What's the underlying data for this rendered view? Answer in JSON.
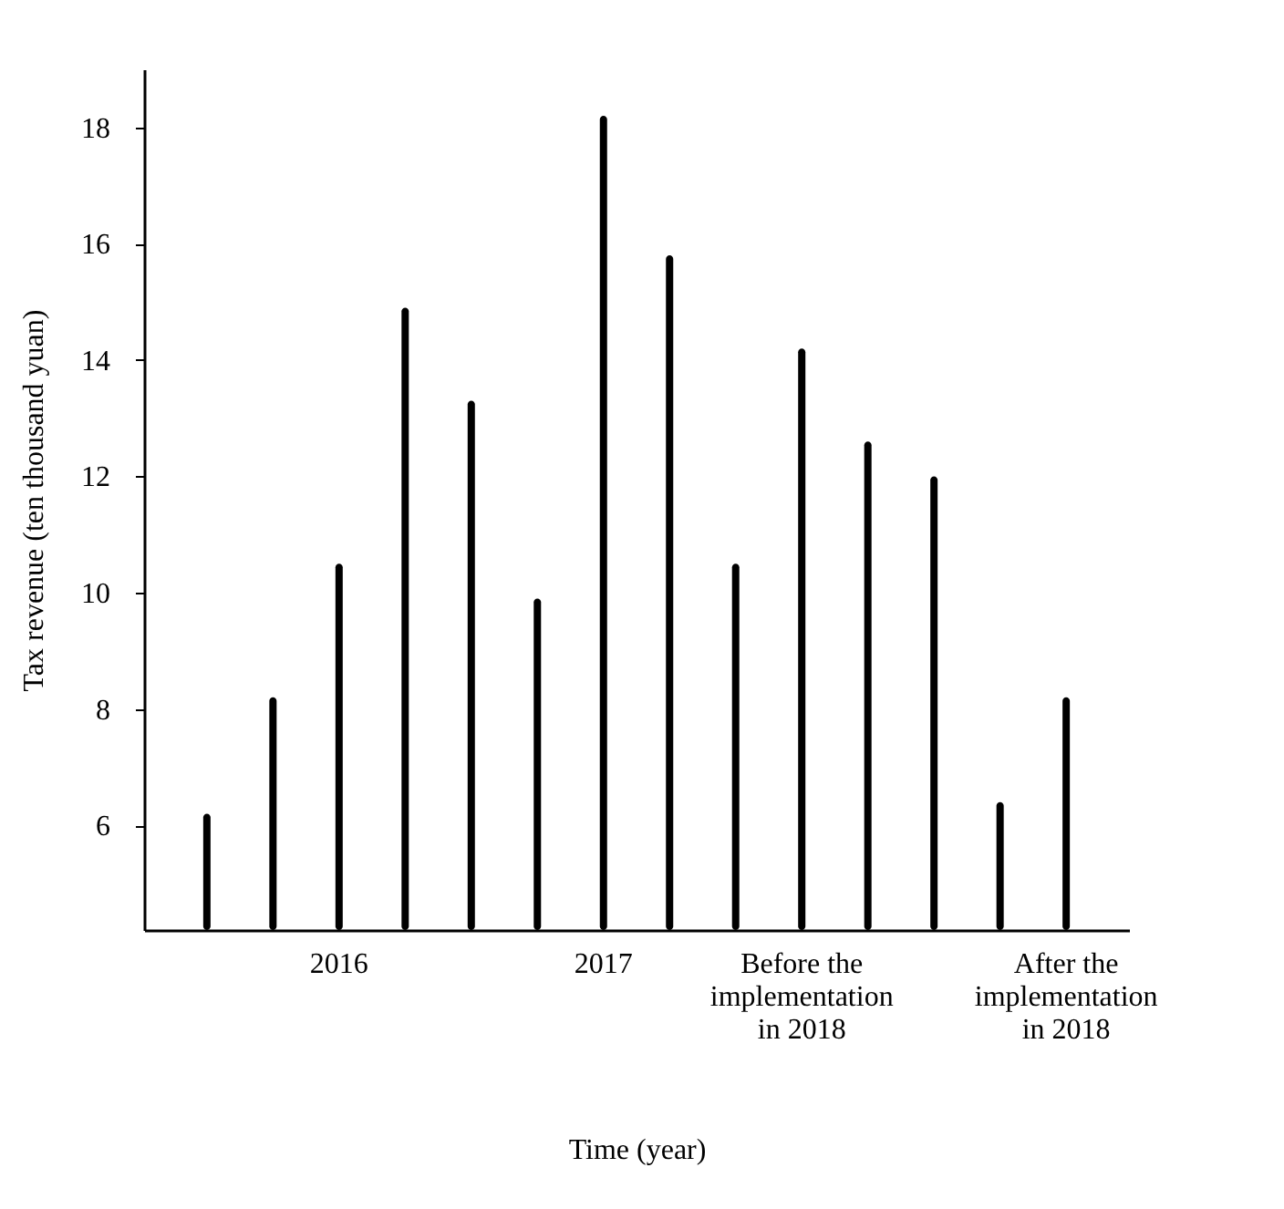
{
  "chart_data": {
    "type": "bar",
    "xlabel": "Time (year)",
    "ylabel": "Tax revenue (ten thousand yuan)",
    "categories": [
      null,
      null,
      "2016",
      null,
      null,
      null,
      "2017",
      null,
      null,
      "Before the implementation in 2018",
      null,
      null,
      null,
      "After the implementation in 2018"
    ],
    "values": [
      6.2,
      8.2,
      10.5,
      14.9,
      13.3,
      9.9,
      18.2,
      15.8,
      10.5,
      14.2,
      12.6,
      12.0,
      6.4,
      8.2
    ],
    "color": "#000000",
    "ylim": [
      4.2,
      19
    ],
    "yticks": [
      6,
      8,
      10,
      12,
      14,
      16,
      18
    ],
    "grid": false
  }
}
